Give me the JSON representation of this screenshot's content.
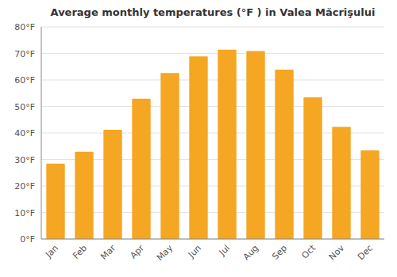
{
  "chart_data": {
    "type": "bar",
    "title": "Average monthly temperatures (°F ) in Valea Măcrişului",
    "categories": [
      "Jan",
      "Feb",
      "Mar",
      "Apr",
      "May",
      "Jun",
      "Jul",
      "Aug",
      "Sep",
      "Oct",
      "Nov",
      "Dec"
    ],
    "values": [
      28.4,
      32.9,
      41.2,
      52.9,
      62.6,
      68.9,
      71.4,
      70.9,
      63.9,
      53.4,
      42.3,
      33.4
    ],
    "color": "#F5A623",
    "ylim": [
      0,
      80
    ],
    "yticks": [
      {
        "value": 0,
        "label": "0°F"
      },
      {
        "value": 10,
        "label": "10°F"
      },
      {
        "value": 20,
        "label": "20°F"
      },
      {
        "value": 30,
        "label": "30°F"
      },
      {
        "value": 40,
        "label": "40°F"
      },
      {
        "value": 50,
        "label": "50°F"
      },
      {
        "value": 60,
        "label": "60°F"
      },
      {
        "value": 70,
        "label": "70°F"
      },
      {
        "value": 80,
        "label": "80°F"
      }
    ],
    "grid": true
  }
}
